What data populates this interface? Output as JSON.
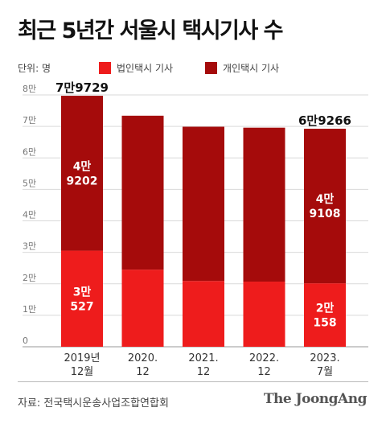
{
  "title": "최근 5년간 서울시 택시기사 수",
  "unit_label": "단위: 명",
  "source": "자료: 전국택시운송사업조합연합회",
  "brand": "The JoongAng",
  "colors": {
    "corporate": "#ee1c1c",
    "individual": "#a50b0b",
    "grid": "#d9d9d9",
    "axis_text": "#777777"
  },
  "chart_data": {
    "type": "bar",
    "stacked": true,
    "categories": [
      "2019년\n12월",
      "2020.\n12",
      "2021.\n12",
      "2022.\n12",
      "2023.\n7월"
    ],
    "series": [
      {
        "name": "법인택시 기사",
        "values": [
          30527,
          24500,
          20900,
          20700,
          20158
        ]
      },
      {
        "name": "개인택시 기사",
        "values": [
          49202,
          48900,
          49000,
          48900,
          49108
        ]
      }
    ],
    "totals": [
      79729,
      73400,
      69900,
      69600,
      69266
    ],
    "total_labels": [
      "7만9729",
      "",
      "",
      "",
      "6만9266"
    ],
    "segment_labels": {
      "법인택시 기사": [
        "3만\n527",
        "",
        "",
        "",
        "2만\n158"
      ],
      "개인택시 기사": [
        "4만\n9202",
        "",
        "",
        "",
        "4만\n9108"
      ]
    },
    "y_ticks": [
      "0",
      "1만",
      "2만",
      "3만",
      "4만",
      "5만",
      "6만",
      "7만",
      "8만"
    ],
    "ylim": [
      0,
      80000
    ],
    "grid": true,
    "legend_position": "top"
  }
}
